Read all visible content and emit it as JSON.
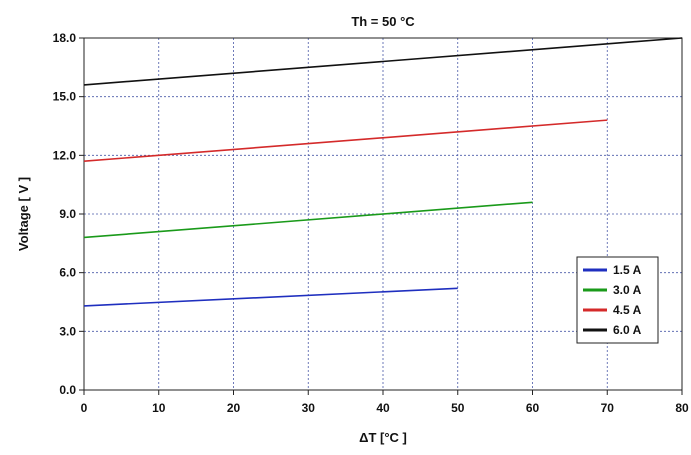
{
  "chart_data": {
    "type": "line",
    "title": "Th = 50 °C",
    "xlabel": "ΔT [°C ]",
    "ylabel": "Voltage [ V ]",
    "xlim": [
      0,
      80
    ],
    "ylim": [
      0,
      18
    ],
    "xticks": [
      "0",
      "10",
      "20",
      "30",
      "40",
      "50",
      "60",
      "70",
      "80"
    ],
    "yticks": [
      "0.0",
      "3.0",
      "6.0",
      "9.0",
      "12.0",
      "15.0",
      "18.0"
    ],
    "grid": true,
    "legend_position": "bottom-right",
    "series": [
      {
        "name": "1.5 A",
        "color": "#1f2fbf",
        "x": [
          0,
          50
        ],
        "y": [
          4.3,
          5.2
        ]
      },
      {
        "name": "3.0 A",
        "color": "#1a9a1a",
        "x": [
          0,
          60
        ],
        "y": [
          7.8,
          9.6
        ]
      },
      {
        "name": "4.5 A",
        "color": "#d42a2a",
        "x": [
          0,
          70
        ],
        "y": [
          11.7,
          13.8
        ]
      },
      {
        "name": "6.0 A",
        "color": "#111111",
        "x": [
          0,
          80
        ],
        "y": [
          15.6,
          18.0
        ]
      }
    ]
  }
}
